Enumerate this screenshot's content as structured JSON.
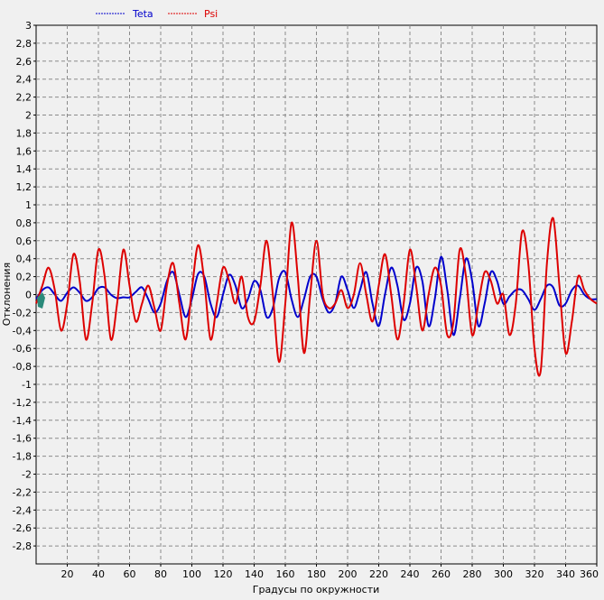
{
  "chart_data": {
    "type": "line",
    "title": "",
    "xlabel": "Градусы по окружности",
    "ylabel": "Отклонения",
    "xlim": [
      0,
      360
    ],
    "ylim": [
      -3,
      3
    ],
    "x_ticks": [
      20,
      40,
      60,
      80,
      100,
      120,
      140,
      160,
      180,
      200,
      220,
      240,
      260,
      280,
      300,
      320,
      340,
      360
    ],
    "y_ticks": [
      3,
      2.8,
      2.6,
      2.4,
      2.2,
      2,
      1.8,
      1.6,
      1.4,
      1.2,
      1,
      0.8,
      0.6,
      0.4,
      0.2,
      0,
      -0.2,
      -0.4,
      -0.6,
      -0.8,
      -1,
      -1.2,
      -1.4,
      -1.6,
      -1.8,
      -2,
      -2.2,
      -2.4,
      -2.6,
      -2.8
    ],
    "y_tick_labels": [
      "3",
      "2,8",
      "2,6",
      "2,4",
      "2,2",
      "2",
      "1,8",
      "1,6",
      "1,4",
      "1,2",
      "1",
      "0,8",
      "0,6",
      "0,4",
      "0,2",
      "0",
      "-0,2",
      "-0,4",
      "-0,6",
      "-0,8",
      "-1",
      "-1,2",
      "-1,4",
      "-1,6",
      "-1,8",
      "-2",
      "-2,2",
      "-2,4",
      "-2,6",
      "-2,8"
    ],
    "x_tick_labels": [
      "20",
      "40",
      "60",
      "80",
      "100",
      "120",
      "140",
      "160",
      "180",
      "200",
      "220",
      "240",
      "260",
      "280",
      "300",
      "320",
      "340",
      "360"
    ],
    "grid": true,
    "legend_position": "top-left",
    "series": [
      {
        "name": "Teta",
        "color": "#0000cc",
        "x": [
          0,
          4,
          8,
          12,
          16,
          20,
          24,
          28,
          32,
          36,
          40,
          44,
          48,
          52,
          56,
          60,
          64,
          68,
          72,
          76,
          80,
          84,
          88,
          92,
          96,
          100,
          104,
          108,
          112,
          116,
          120,
          124,
          128,
          132,
          136,
          140,
          144,
          148,
          152,
          156,
          160,
          164,
          168,
          172,
          176,
          180,
          184,
          188,
          192,
          196,
          200,
          204,
          208,
          212,
          216,
          220,
          224,
          228,
          232,
          236,
          240,
          244,
          248,
          252,
          256,
          260,
          264,
          268,
          272,
          276,
          280,
          284,
          288,
          292,
          296,
          300,
          304,
          308,
          312,
          316,
          320,
          324,
          328,
          332,
          336,
          340,
          344,
          348,
          352,
          356,
          360
        ],
        "values": [
          -0.05,
          0.05,
          0.08,
          0.0,
          -0.07,
          0.02,
          0.08,
          0.02,
          -0.07,
          -0.03,
          0.07,
          0.08,
          0.0,
          -0.04,
          -0.03,
          -0.03,
          0.03,
          0.08,
          -0.05,
          -0.2,
          -0.1,
          0.15,
          0.25,
          0.0,
          -0.25,
          -0.05,
          0.23,
          0.2,
          -0.1,
          -0.25,
          0.0,
          0.22,
          0.1,
          -0.15,
          -0.05,
          0.15,
          0.05,
          -0.25,
          -0.15,
          0.18,
          0.25,
          -0.05,
          -0.25,
          -0.05,
          0.2,
          0.2,
          -0.05,
          -0.2,
          -0.1,
          0.2,
          0.05,
          -0.15,
          0.05,
          0.25,
          -0.1,
          -0.35,
          0.0,
          0.3,
          0.1,
          -0.28,
          -0.1,
          0.3,
          0.15,
          -0.35,
          -0.05,
          0.42,
          0.05,
          -0.45,
          -0.05,
          0.4,
          0.15,
          -0.35,
          -0.1,
          0.25,
          0.15,
          -0.1,
          -0.02,
          0.05,
          0.05,
          -0.05,
          -0.17,
          -0.05,
          0.1,
          0.08,
          -0.12,
          -0.1,
          0.05,
          0.1,
          0.0,
          -0.05,
          -0.05
        ]
      },
      {
        "name": "Psi",
        "color": "#dd0000",
        "x": [
          0,
          4,
          8,
          12,
          16,
          20,
          24,
          28,
          32,
          36,
          40,
          44,
          48,
          52,
          56,
          60,
          64,
          68,
          72,
          76,
          80,
          84,
          88,
          92,
          96,
          100,
          104,
          108,
          112,
          116,
          120,
          124,
          128,
          132,
          136,
          140,
          144,
          148,
          152,
          156,
          160,
          164,
          168,
          172,
          176,
          180,
          184,
          188,
          192,
          196,
          200,
          204,
          208,
          212,
          216,
          220,
          224,
          228,
          232,
          236,
          240,
          244,
          248,
          252,
          256,
          260,
          264,
          268,
          272,
          276,
          280,
          284,
          288,
          292,
          296,
          300,
          304,
          308,
          312,
          316,
          320,
          324,
          328,
          332,
          336,
          340,
          344,
          348,
          352,
          356,
          360
        ],
        "values": [
          -0.1,
          0.1,
          0.3,
          0.05,
          -0.4,
          -0.1,
          0.45,
          0.15,
          -0.5,
          -0.1,
          0.5,
          0.2,
          -0.5,
          -0.1,
          0.5,
          0.1,
          -0.3,
          -0.1,
          0.1,
          -0.15,
          -0.4,
          0.1,
          0.35,
          -0.1,
          -0.5,
          0.05,
          0.55,
          0.15,
          -0.5,
          -0.1,
          0.3,
          0.15,
          -0.1,
          0.2,
          -0.25,
          -0.3,
          0.1,
          0.6,
          0.0,
          -0.75,
          -0.1,
          0.8,
          0.2,
          -0.65,
          0.0,
          0.6,
          0.0,
          -0.15,
          -0.1,
          0.05,
          -0.15,
          0.0,
          0.35,
          0.0,
          -0.3,
          0.1,
          0.45,
          0.0,
          -0.5,
          -0.1,
          0.5,
          0.1,
          -0.4,
          0.0,
          0.3,
          0.1,
          -0.45,
          -0.3,
          0.5,
          0.2,
          -0.45,
          -0.1,
          0.25,
          0.15,
          -0.1,
          0.0,
          -0.45,
          -0.1,
          0.7,
          0.35,
          -0.6,
          -0.85,
          0.35,
          0.85,
          0.1,
          -0.65,
          -0.3,
          0.2,
          0.05,
          -0.05,
          -0.1
        ]
      }
    ]
  }
}
